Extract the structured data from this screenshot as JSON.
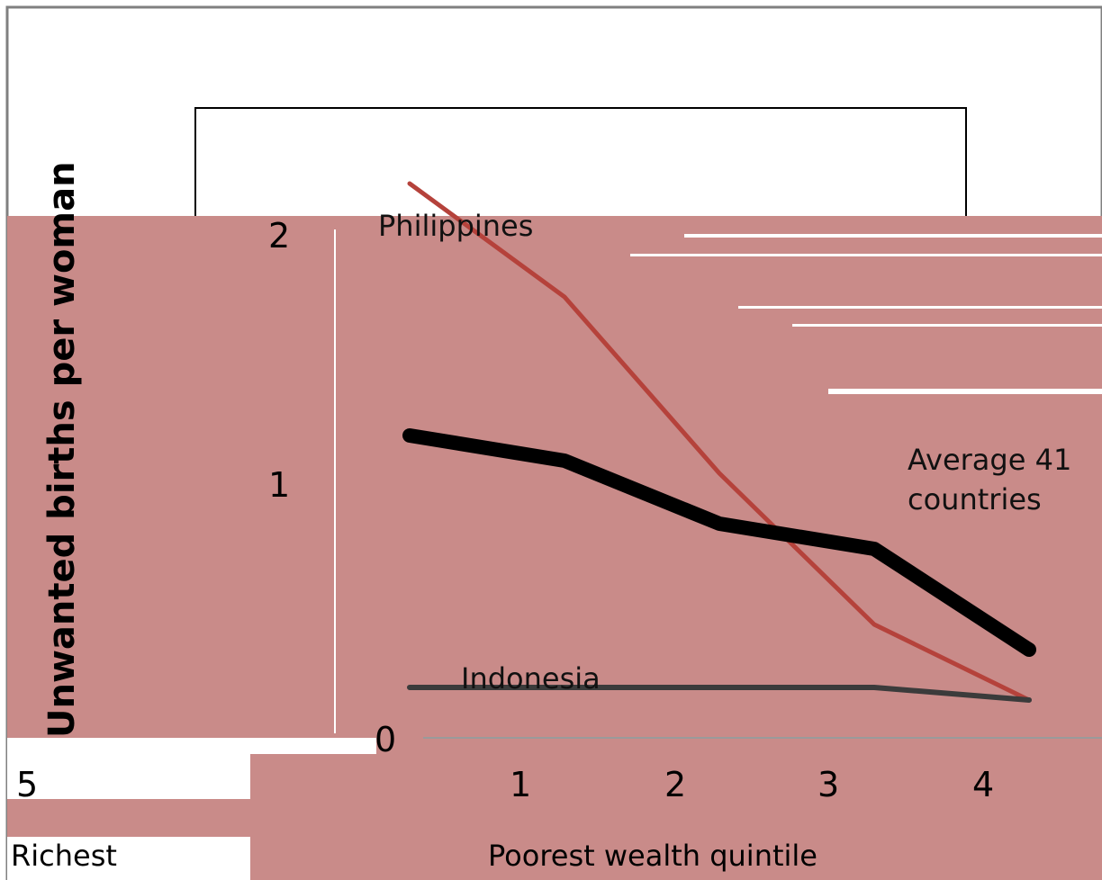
{
  "chart_data": {
    "type": "line",
    "ylabel": "Unwanted births per woman",
    "xlabel": "Poorest wealth quintile",
    "x_categories": [
      "1",
      "2",
      "3",
      "4",
      "5"
    ],
    "x_extreme_label_right": "Richest",
    "ylim": [
      0,
      2
    ],
    "yticks": [
      "0",
      "1",
      "2"
    ],
    "series": [
      {
        "name": "Philippines",
        "color": "#b5423b",
        "values": [
          2.2,
          1.75,
          1.05,
          0.45,
          0.15
        ]
      },
      {
        "name": "Average 41 countries",
        "color": "#000000",
        "values": [
          1.2,
          1.1,
          0.85,
          0.75,
          0.35
        ]
      },
      {
        "name": "Indonesia",
        "color": "#3b3b3b",
        "values": [
          0.2,
          0.2,
          0.2,
          0.2,
          0.15
        ]
      }
    ]
  },
  "colors": {
    "background": "#ffffff",
    "plot_border": "#000000",
    "overlay": "#c98b89"
  }
}
